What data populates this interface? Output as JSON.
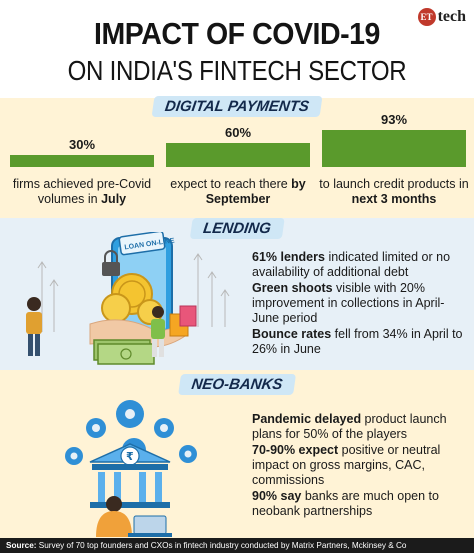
{
  "logo": {
    "badge": "ET",
    "word": "tech"
  },
  "title": {
    "line1": "IMPACT OF COVID-19",
    "line2": "ON INDIA'S FINTECH SECTOR"
  },
  "digital_payments": {
    "heading": "DIGITAL PAYMENTS",
    "items": [
      {
        "value": "30%",
        "percent": 30,
        "text": "firms achieved pre-Covid volumes in ",
        "bold": "July"
      },
      {
        "value": "60%",
        "percent": 60,
        "text": "expect to reach there ",
        "bold": "by September"
      },
      {
        "value": "93%",
        "percent": 93,
        "text": "to launch credit products in ",
        "bold": "next 3 months"
      }
    ],
    "bar_color": "#5a9a2c"
  },
  "lending": {
    "heading": "LENDING",
    "illustration_label": "LOAN ON-LINE",
    "bullets": [
      {
        "bold": "61% lenders",
        "text": " indicated limited or no availability of additional debt"
      },
      {
        "bold": "Green shoots",
        "text": " visible with 20% improvement in collections in April-June period"
      },
      {
        "bold": "Bounce rates",
        "text": " fell from 34% in April to 26% in June"
      }
    ]
  },
  "neo_banks": {
    "heading": "NEO-BANKS",
    "illustration_symbol": "₹",
    "bullets": [
      {
        "bold": "Pandemic delayed",
        "text": " product launch plans for 50% of the players"
      },
      {
        "bold": "70-90% expect",
        "text": " positive or neutral impact on gross margins, CAC, commissions"
      },
      {
        "bold": "90% say",
        "text": " banks are much open to neobank partnerships"
      }
    ]
  },
  "footer": {
    "label": "Source:",
    "text": " Survey of 70 top founders and CXOs in fintech industry conducted by Matrix Partners, Mckinsey & Co"
  },
  "colors": {
    "accent_blue": "#13294b",
    "pill_bg": "#cfe7f6",
    "bar_green": "#5a9a2c",
    "cream": "#fff3d6",
    "light_blue": "#e7f0f7"
  }
}
